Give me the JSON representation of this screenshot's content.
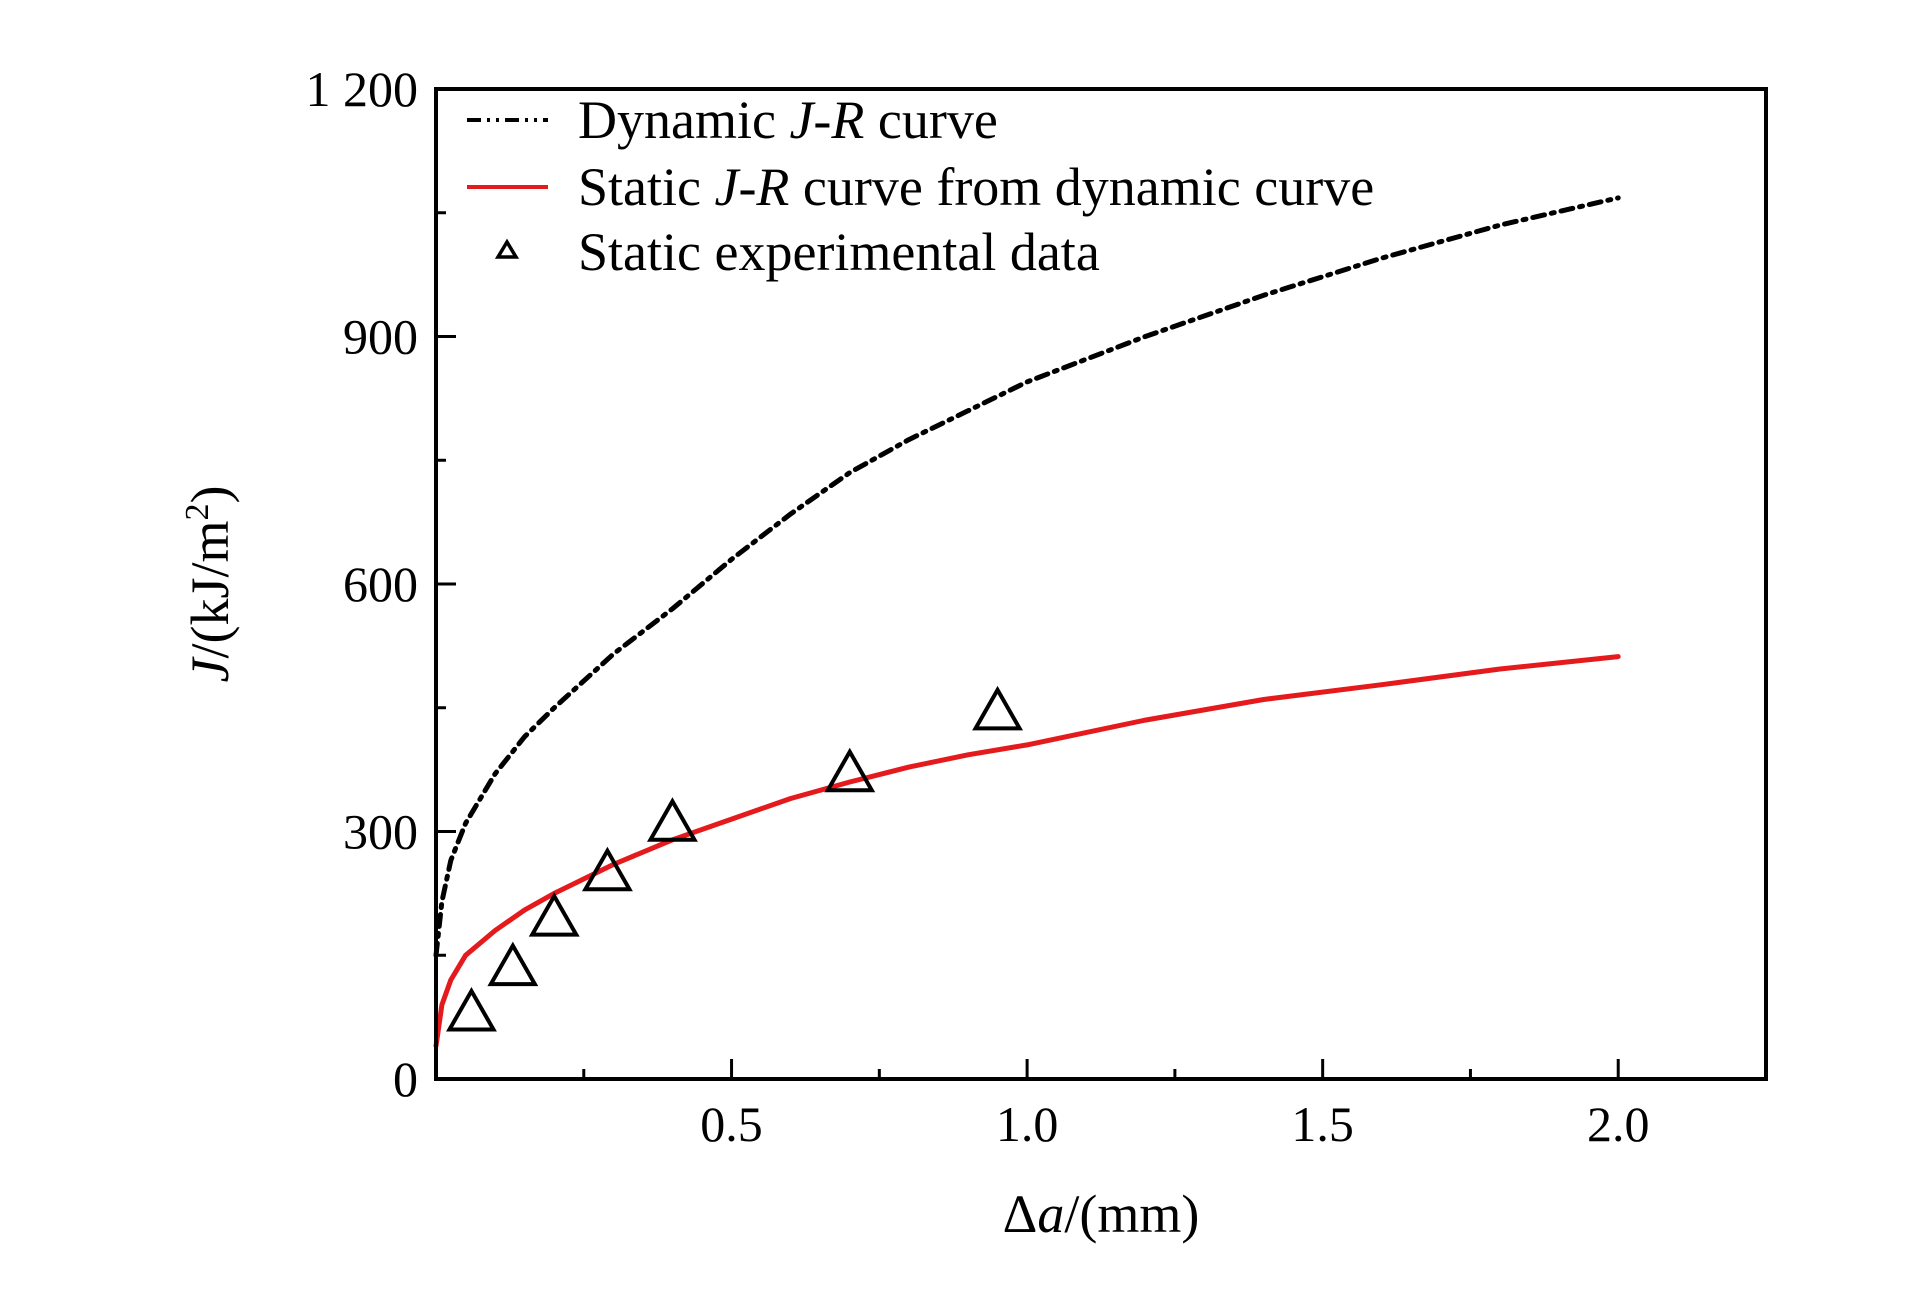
{
  "chart_data": {
    "type": "line",
    "xlabel": {
      "symbol": "Δ",
      "var": "a",
      "rest": "/(mm)"
    },
    "ylabel": {
      "var": "J",
      "rest": "/(kJ/m",
      "sup": "2",
      "close": ")"
    },
    "xlim": [
      0,
      2.25
    ],
    "ylim": [
      0,
      1200
    ],
    "x_ticks": [
      {
        "value": 0.5,
        "label": "0.5"
      },
      {
        "value": 1.0,
        "label": "1.0"
      },
      {
        "value": 1.5,
        "label": "1.5"
      },
      {
        "value": 2.0,
        "label": "2.0"
      }
    ],
    "y_ticks": [
      {
        "value": 0,
        "label": "0"
      },
      {
        "value": 300,
        "label": "300"
      },
      {
        "value": 600,
        "label": "600"
      },
      {
        "value": 900,
        "label": "900"
      },
      {
        "value": 1200,
        "label": "1 200"
      }
    ],
    "series": [
      {
        "name": "dynamic",
        "label": "Dynamic J-R curve",
        "legend_parts": [
          "Dynamic ",
          "J-R",
          " curve"
        ],
        "style": "dash-dot",
        "color": "#000000",
        "x": [
          0.0,
          0.01,
          0.025,
          0.05,
          0.1,
          0.15,
          0.2,
          0.3,
          0.4,
          0.5,
          0.6,
          0.7,
          0.8,
          0.9,
          1.0,
          1.2,
          1.4,
          1.6,
          1.8,
          2.0
        ],
        "y": [
          150,
          215,
          265,
          310,
          370,
          415,
          450,
          515,
          570,
          630,
          685,
          735,
          775,
          810,
          845,
          900,
          950,
          995,
          1035,
          1068
        ]
      },
      {
        "name": "static-from-dynamic",
        "label": "Static J-R curve from dynamic curve",
        "legend_parts": [
          "Static ",
          "J-R",
          " curve from dynamic curve"
        ],
        "style": "solid",
        "color": "#e41a1c",
        "x": [
          0.0,
          0.01,
          0.025,
          0.05,
          0.1,
          0.15,
          0.2,
          0.3,
          0.4,
          0.5,
          0.6,
          0.7,
          0.8,
          0.9,
          1.0,
          1.2,
          1.4,
          1.6,
          1.8,
          2.0
        ],
        "y": [
          40,
          90,
          120,
          150,
          180,
          205,
          225,
          260,
          290,
          315,
          340,
          360,
          378,
          393,
          405,
          435,
          460,
          478,
          497,
          512
        ]
      },
      {
        "name": "static-experimental",
        "label": "Static experimental data",
        "legend_parts": [
          "Static experimental data"
        ],
        "style": "triangle",
        "color": "#000000",
        "x": [
          0.06,
          0.13,
          0.2,
          0.29,
          0.4,
          0.7,
          0.95
        ],
        "y": [
          80,
          135,
          195,
          250,
          310,
          370,
          445
        ]
      }
    ]
  }
}
